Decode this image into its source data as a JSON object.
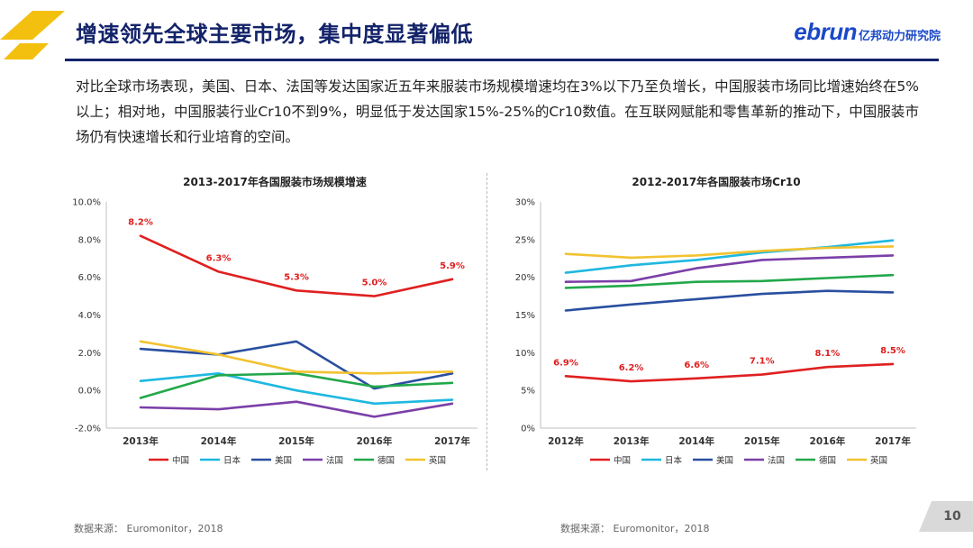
{
  "header": {
    "title": "增速领先全球主要市场，集中度显著偏低",
    "brand_en": "ebrun",
    "brand_cn": "亿邦动力研究院"
  },
  "intro_text": "对比全球市场表现，美国、日本、法国等发达国家近五年来服装市场规模增速均在3%以下乃至负增长，中国服装市场同比增速始终在5%以上；相对地，中国服装行业Cr10不到9%，明显低于发达国家15%-25%的Cr10数值。在互联网赋能和零售革新的推动下，中国服装市场仍有快速增长和行业培育的空间。",
  "colors": {
    "中国": "#e02020",
    "日本": "#1eb8e0",
    "美国": "#2a4fa0",
    "法国": "#7b3fa8",
    "德国": "#22a84a",
    "英国": "#f2c230",
    "title": "#13236a",
    "accent": "#f4c010"
  },
  "chart_data": [
    {
      "type": "line",
      "title": "2013-2017年各国服装市场规模增速",
      "categories": [
        "2013年",
        "2014年",
        "2015年",
        "2016年",
        "2017年"
      ],
      "ylim": [
        -2.0,
        10.0
      ],
      "yticks": [
        -2.0,
        0.0,
        2.0,
        4.0,
        6.0,
        8.0,
        10.0
      ],
      "ytick_labels": [
        "-2.0%",
        "0.0%",
        "2.0%",
        "4.0%",
        "6.0%",
        "8.0%",
        "10.0%"
      ],
      "grid": false,
      "legend": "bottom",
      "series": [
        {
          "name": "中国",
          "values": [
            8.2,
            6.3,
            5.3,
            5.0,
            5.9
          ],
          "labels": [
            "8.2%",
            "6.3%",
            "5.3%",
            "5.0%",
            "5.9%"
          ]
        },
        {
          "name": "日本",
          "values": [
            0.5,
            0.9,
            0.0,
            -0.7,
            -0.5
          ]
        },
        {
          "name": "美国",
          "values": [
            2.2,
            1.9,
            2.6,
            0.1,
            0.9
          ]
        },
        {
          "name": "法国",
          "values": [
            -0.9,
            -1.0,
            -0.6,
            -1.4,
            -0.7
          ]
        },
        {
          "name": "德国",
          "values": [
            -0.4,
            0.8,
            0.9,
            0.2,
            0.4
          ]
        },
        {
          "name": "英国",
          "values": [
            2.6,
            1.9,
            1.0,
            0.9,
            1.0
          ]
        }
      ]
    },
    {
      "type": "line",
      "title": "2012-2017年各国服装市场Cr10",
      "categories": [
        "2012年",
        "2013年",
        "2014年",
        "2015年",
        "2016年",
        "2017年"
      ],
      "ylim": [
        0,
        30
      ],
      "yticks": [
        0,
        5,
        10,
        15,
        20,
        25,
        30
      ],
      "ytick_labels": [
        "0%",
        "5%",
        "10%",
        "15%",
        "20%",
        "25%",
        "30%"
      ],
      "grid": false,
      "legend": "bottom",
      "series": [
        {
          "name": "中国",
          "values": [
            6.9,
            6.2,
            6.6,
            7.1,
            8.1,
            8.5
          ],
          "labels": [
            "6.9%",
            "6.2%",
            "6.6%",
            "7.1%",
            "8.1%",
            "8.5%"
          ]
        },
        {
          "name": "日本",
          "values": [
            20.6,
            21.6,
            22.3,
            23.3,
            24.0,
            24.9
          ]
        },
        {
          "name": "美国",
          "values": [
            15.6,
            16.4,
            17.1,
            17.8,
            18.2,
            18.0
          ]
        },
        {
          "name": "法国",
          "values": [
            19.4,
            19.5,
            21.2,
            22.3,
            22.6,
            22.9
          ]
        },
        {
          "name": "德国",
          "values": [
            18.6,
            18.9,
            19.4,
            19.5,
            19.9,
            20.3
          ]
        },
        {
          "name": "英国",
          "values": [
            23.1,
            22.6,
            22.9,
            23.5,
            23.9,
            24.1
          ]
        }
      ]
    }
  ],
  "sources": [
    "数据来源： Euromonitor，2018",
    "数据来源： Euromonitor，2018"
  ],
  "page_number": "10"
}
